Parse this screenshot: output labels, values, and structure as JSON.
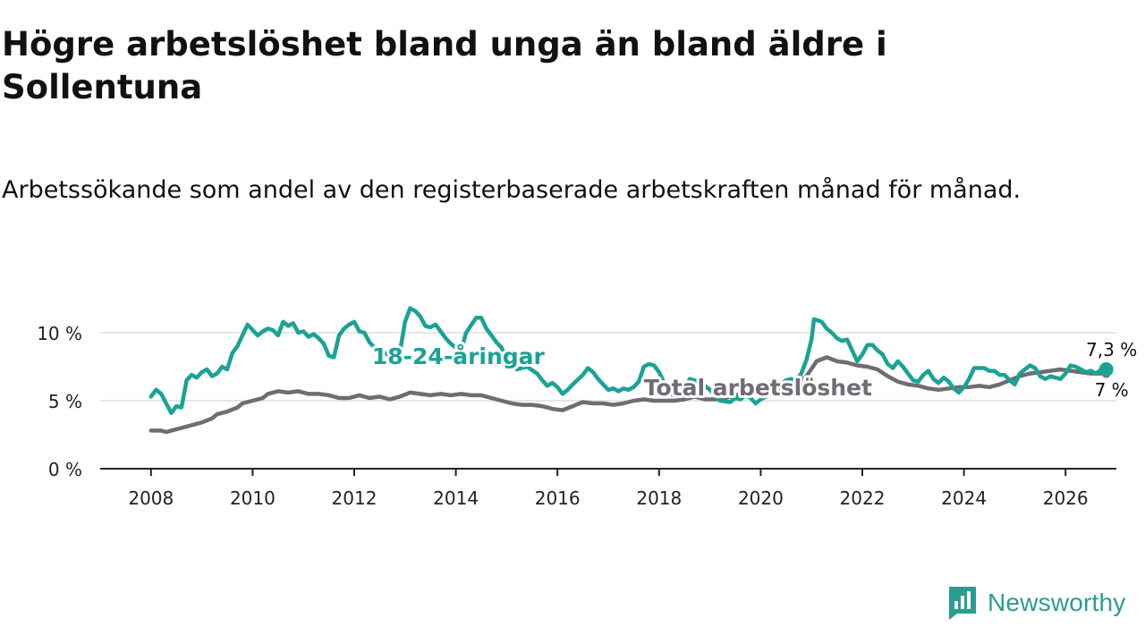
{
  "title": "Högre arbetslöshet bland unga än bland äldre i Sollentuna",
  "subtitle": "Arbetssökande som andel av den registerbaserade arbetskraften månad för månad.",
  "brand": {
    "name": "Newsworthy",
    "icon": "newsworthy-logo-icon"
  },
  "colors": {
    "youth": "#1aa394",
    "total": "#6f6c74",
    "axis": "#222222",
    "grid": "#dddddd"
  },
  "chart_data": {
    "type": "line",
    "title": "Högre arbetslöshet bland unga än bland äldre i Sollentuna",
    "xlabel": "",
    "ylabel": "",
    "xlim": [
      2007,
      2027
    ],
    "ylim": [
      0,
      10
    ],
    "x_ticks": [
      2008,
      2010,
      2012,
      2014,
      2016,
      2018,
      2020,
      2022,
      2024,
      2026
    ],
    "x_tick_labels": [
      "2008",
      "2010",
      "2012",
      "2014",
      "2016",
      "2018",
      "2020",
      "2022",
      "2024",
      "2026"
    ],
    "y_ticks": [
      0,
      5,
      10
    ],
    "y_tick_labels": [
      "0 %",
      "5 %",
      "10 %"
    ],
    "grid": true,
    "series": [
      {
        "name": "18-24-åringar",
        "label": "18-24-åringar",
        "end_label": "7,3 %",
        "points": [
          [
            2008.0,
            5.3
          ],
          [
            2008.1,
            5.8
          ],
          [
            2008.2,
            5.5
          ],
          [
            2008.3,
            4.8
          ],
          [
            2008.4,
            4.1
          ],
          [
            2008.5,
            4.6
          ],
          [
            2008.6,
            4.5
          ],
          [
            2008.7,
            6.5
          ],
          [
            2008.8,
            6.9
          ],
          [
            2008.9,
            6.7
          ],
          [
            2009.0,
            7.1
          ],
          [
            2009.1,
            7.3
          ],
          [
            2009.2,
            6.8
          ],
          [
            2009.3,
            7.0
          ],
          [
            2009.4,
            7.5
          ],
          [
            2009.5,
            7.3
          ],
          [
            2009.6,
            8.5
          ],
          [
            2009.7,
            9.0
          ],
          [
            2009.8,
            9.8
          ],
          [
            2009.9,
            10.6
          ],
          [
            2010.0,
            10.2
          ],
          [
            2010.1,
            9.8
          ],
          [
            2010.2,
            10.1
          ],
          [
            2010.3,
            10.3
          ],
          [
            2010.4,
            10.2
          ],
          [
            2010.5,
            9.8
          ],
          [
            2010.6,
            10.8
          ],
          [
            2010.7,
            10.5
          ],
          [
            2010.8,
            10.7
          ],
          [
            2010.9,
            10.0
          ],
          [
            2011.0,
            10.1
          ],
          [
            2011.1,
            9.7
          ],
          [
            2011.2,
            9.9
          ],
          [
            2011.3,
            9.6
          ],
          [
            2011.4,
            9.2
          ],
          [
            2011.5,
            8.3
          ],
          [
            2011.6,
            8.2
          ],
          [
            2011.7,
            9.8
          ],
          [
            2011.8,
            10.3
          ],
          [
            2011.9,
            10.6
          ],
          [
            2012.0,
            10.8
          ],
          [
            2012.1,
            10.1
          ],
          [
            2012.2,
            10.0
          ],
          [
            2012.3,
            9.3
          ],
          [
            2012.4,
            8.9
          ],
          [
            2012.5,
            8.8
          ],
          [
            2012.6,
            8.5
          ],
          [
            2012.7,
            8.3
          ],
          [
            2012.9,
            8.6
          ],
          [
            2013.0,
            10.8
          ],
          [
            2013.1,
            11.8
          ],
          [
            2013.2,
            11.6
          ],
          [
            2013.3,
            11.2
          ],
          [
            2013.4,
            10.5
          ],
          [
            2013.5,
            10.4
          ],
          [
            2013.6,
            10.6
          ],
          [
            2013.7,
            10.1
          ],
          [
            2013.8,
            9.6
          ],
          [
            2013.9,
            9.2
          ],
          [
            2014.1,
            8.6
          ],
          [
            2014.2,
            10.0
          ],
          [
            2014.4,
            11.1
          ],
          [
            2014.5,
            11.1
          ],
          [
            2014.6,
            10.3
          ],
          [
            2014.8,
            9.3
          ],
          [
            2014.9,
            8.9
          ],
          [
            2015.0,
            8.1
          ],
          [
            2015.1,
            7.6
          ],
          [
            2015.2,
            7.3
          ],
          [
            2015.4,
            7.5
          ],
          [
            2015.6,
            7.0
          ],
          [
            2015.7,
            6.5
          ],
          [
            2015.8,
            6.1
          ],
          [
            2015.9,
            6.3
          ],
          [
            2016.0,
            6.0
          ],
          [
            2016.1,
            5.5
          ],
          [
            2016.2,
            5.8
          ],
          [
            2016.3,
            6.2
          ],
          [
            2016.5,
            6.9
          ],
          [
            2016.6,
            7.4
          ],
          [
            2016.7,
            7.1
          ],
          [
            2016.8,
            6.6
          ],
          [
            2016.9,
            6.2
          ],
          [
            2017.0,
            5.8
          ],
          [
            2017.1,
            5.9
          ],
          [
            2017.2,
            5.7
          ],
          [
            2017.3,
            5.9
          ],
          [
            2017.4,
            5.8
          ],
          [
            2017.5,
            6.0
          ],
          [
            2017.6,
            6.4
          ],
          [
            2017.7,
            7.5
          ],
          [
            2017.8,
            7.7
          ],
          [
            2017.9,
            7.6
          ],
          [
            2018.0,
            7.1
          ],
          [
            2018.1,
            6.3
          ],
          [
            2018.2,
            5.6
          ],
          [
            2018.3,
            5.4
          ],
          [
            2018.4,
            5.3
          ],
          [
            2018.5,
            5.5
          ],
          [
            2018.6,
            6.6
          ],
          [
            2018.8,
            6.4
          ],
          [
            2019.0,
            5.8
          ],
          [
            2019.2,
            5.0
          ],
          [
            2019.4,
            4.9
          ],
          [
            2019.5,
            5.2
          ],
          [
            2019.6,
            5.1
          ],
          [
            2019.7,
            5.4
          ],
          [
            2019.8,
            5.2
          ],
          [
            2019.9,
            4.8
          ],
          [
            2020.0,
            5.1
          ],
          [
            2020.2,
            5.5
          ],
          [
            2020.3,
            5.9
          ],
          [
            2020.4,
            6.2
          ],
          [
            2020.5,
            6.5
          ],
          [
            2020.6,
            6.6
          ],
          [
            2020.7,
            6.5
          ],
          [
            2020.8,
            7.0
          ],
          [
            2020.9,
            8.0
          ],
          [
            2021.0,
            9.5
          ],
          [
            2021.05,
            11.0
          ],
          [
            2021.2,
            10.8
          ],
          [
            2021.3,
            10.3
          ],
          [
            2021.4,
            10.0
          ],
          [
            2021.5,
            9.6
          ],
          [
            2021.6,
            9.4
          ],
          [
            2021.7,
            9.5
          ],
          [
            2021.8,
            8.7
          ],
          [
            2021.9,
            7.9
          ],
          [
            2022.0,
            8.4
          ],
          [
            2022.1,
            9.1
          ],
          [
            2022.2,
            9.1
          ],
          [
            2022.3,
            8.7
          ],
          [
            2022.4,
            8.4
          ],
          [
            2022.5,
            7.7
          ],
          [
            2022.6,
            7.4
          ],
          [
            2022.7,
            7.9
          ],
          [
            2022.8,
            7.5
          ],
          [
            2022.9,
            7.0
          ],
          [
            2023.0,
            6.5
          ],
          [
            2023.1,
            6.4
          ],
          [
            2023.2,
            6.9
          ],
          [
            2023.3,
            7.2
          ],
          [
            2023.4,
            6.6
          ],
          [
            2023.5,
            6.3
          ],
          [
            2023.6,
            6.7
          ],
          [
            2023.7,
            6.4
          ],
          [
            2023.8,
            5.9
          ],
          [
            2023.9,
            5.6
          ],
          [
            2024.0,
            6.0
          ],
          [
            2024.1,
            6.6
          ],
          [
            2024.2,
            7.4
          ],
          [
            2024.3,
            7.4
          ],
          [
            2024.4,
            7.4
          ],
          [
            2024.5,
            7.2
          ],
          [
            2024.6,
            7.2
          ],
          [
            2024.7,
            6.9
          ],
          [
            2024.8,
            6.9
          ],
          [
            2024.9,
            6.5
          ],
          [
            2025.0,
            6.2
          ],
          [
            2025.1,
            7.0
          ],
          [
            2025.2,
            7.3
          ],
          [
            2025.3,
            7.6
          ],
          [
            2025.4,
            7.4
          ],
          [
            2025.5,
            6.8
          ],
          [
            2025.6,
            6.6
          ],
          [
            2025.7,
            6.8
          ],
          [
            2025.8,
            6.7
          ],
          [
            2025.9,
            6.6
          ],
          [
            2026.0,
            7.0
          ],
          [
            2026.1,
            7.6
          ],
          [
            2026.2,
            7.5
          ],
          [
            2026.3,
            7.3
          ],
          [
            2026.4,
            7.1
          ],
          [
            2026.5,
            7.2
          ],
          [
            2026.6,
            7.0
          ],
          [
            2026.7,
            7.3
          ],
          [
            2026.8,
            7.3
          ]
        ]
      },
      {
        "name": "Total arbetslöshet",
        "label": "Total arbetslöshet",
        "end_label": "7 %",
        "points": [
          [
            2008.0,
            2.8
          ],
          [
            2008.2,
            2.8
          ],
          [
            2008.3,
            2.7
          ],
          [
            2008.4,
            2.8
          ],
          [
            2008.5,
            2.9
          ],
          [
            2008.7,
            3.1
          ],
          [
            2008.9,
            3.3
          ],
          [
            2009.0,
            3.4
          ],
          [
            2009.2,
            3.7
          ],
          [
            2009.3,
            4.0
          ],
          [
            2009.5,
            4.2
          ],
          [
            2009.7,
            4.5
          ],
          [
            2009.8,
            4.8
          ],
          [
            2010.0,
            5.0
          ],
          [
            2010.2,
            5.2
          ],
          [
            2010.3,
            5.5
          ],
          [
            2010.5,
            5.7
          ],
          [
            2010.7,
            5.6
          ],
          [
            2010.9,
            5.7
          ],
          [
            2011.1,
            5.5
          ],
          [
            2011.3,
            5.5
          ],
          [
            2011.5,
            5.4
          ],
          [
            2011.7,
            5.2
          ],
          [
            2011.9,
            5.2
          ],
          [
            2012.1,
            5.4
          ],
          [
            2012.3,
            5.2
          ],
          [
            2012.5,
            5.3
          ],
          [
            2012.7,
            5.1
          ],
          [
            2012.9,
            5.3
          ],
          [
            2013.1,
            5.6
          ],
          [
            2013.3,
            5.5
          ],
          [
            2013.5,
            5.4
          ],
          [
            2013.7,
            5.5
          ],
          [
            2013.9,
            5.4
          ],
          [
            2014.1,
            5.5
          ],
          [
            2014.3,
            5.4
          ],
          [
            2014.5,
            5.4
          ],
          [
            2014.7,
            5.2
          ],
          [
            2014.9,
            5.0
          ],
          [
            2015.1,
            4.8
          ],
          [
            2015.3,
            4.7
          ],
          [
            2015.5,
            4.7
          ],
          [
            2015.7,
            4.6
          ],
          [
            2015.9,
            4.4
          ],
          [
            2016.1,
            4.3
          ],
          [
            2016.3,
            4.6
          ],
          [
            2016.5,
            4.9
          ],
          [
            2016.7,
            4.8
          ],
          [
            2016.9,
            4.8
          ],
          [
            2017.1,
            4.7
          ],
          [
            2017.3,
            4.8
          ],
          [
            2017.5,
            5.0
          ],
          [
            2017.7,
            5.1
          ],
          [
            2017.9,
            5.0
          ],
          [
            2018.1,
            5.0
          ],
          [
            2018.3,
            5.0
          ],
          [
            2018.5,
            5.1
          ],
          [
            2018.7,
            5.3
          ],
          [
            2018.9,
            5.1
          ],
          [
            2019.1,
            5.1
          ],
          [
            2019.3,
            5.2
          ],
          [
            2019.5,
            5.4
          ],
          [
            2019.7,
            5.5
          ],
          [
            2019.9,
            5.6
          ],
          [
            2020.1,
            5.5
          ],
          [
            2020.3,
            5.8
          ],
          [
            2020.5,
            6.1
          ],
          [
            2020.7,
            6.3
          ],
          [
            2020.9,
            6.8
          ],
          [
            2021.1,
            7.9
          ],
          [
            2021.3,
            8.2
          ],
          [
            2021.5,
            7.9
          ],
          [
            2021.7,
            7.8
          ],
          [
            2021.9,
            7.6
          ],
          [
            2022.1,
            7.5
          ],
          [
            2022.3,
            7.3
          ],
          [
            2022.5,
            6.8
          ],
          [
            2022.7,
            6.4
          ],
          [
            2022.9,
            6.2
          ],
          [
            2023.1,
            6.1
          ],
          [
            2023.3,
            5.9
          ],
          [
            2023.5,
            5.8
          ],
          [
            2023.7,
            5.9
          ],
          [
            2023.9,
            6.0
          ],
          [
            2024.1,
            6.0
          ],
          [
            2024.3,
            6.1
          ],
          [
            2024.5,
            6.0
          ],
          [
            2024.7,
            6.2
          ],
          [
            2024.9,
            6.5
          ],
          [
            2025.1,
            6.8
          ],
          [
            2025.3,
            7.0
          ],
          [
            2025.5,
            7.1
          ],
          [
            2025.7,
            7.2
          ],
          [
            2025.9,
            7.3
          ],
          [
            2026.1,
            7.2
          ],
          [
            2026.3,
            7.1
          ],
          [
            2026.5,
            7.0
          ],
          [
            2026.7,
            7.0
          ],
          [
            2026.8,
            7.0
          ]
        ]
      }
    ]
  }
}
